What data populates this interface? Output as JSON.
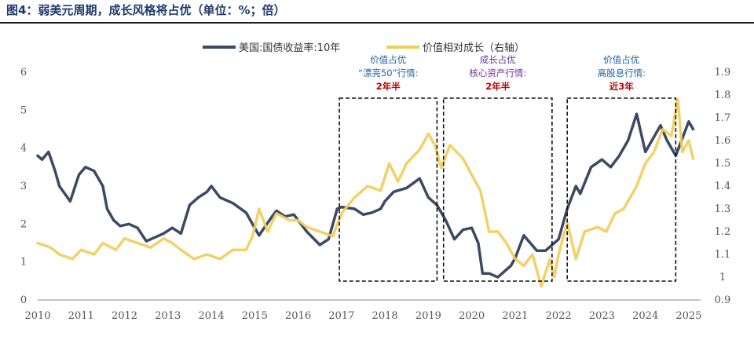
{
  "figure_title": "图4：弱美元周期，成长风格将占优（单位：%；倍）",
  "colors": {
    "us10y": "#3b4a63",
    "value_growth": "#f2cd5b",
    "ann_blue": "#1b63a8",
    "ann_red": "#c00000",
    "ann_purple": "#7030a0"
  },
  "annotations": [
    {
      "lines": [
        "价值占优",
        "“漂亮50”行情:",
        "2年半"
      ],
      "colors": [
        "ann_blue",
        "ann_blue",
        "ann_red"
      ],
      "x0": 2016.95,
      "x1": 2019.2
    },
    {
      "lines": [
        "成长占优",
        "核心资产行情:",
        "2年半"
      ],
      "colors": [
        "ann_purple",
        "ann_purple",
        "ann_red"
      ],
      "x0": 2019.35,
      "x1": 2021.85
    },
    {
      "lines": [
        "价值占优",
        "高股息行情:",
        "近3年"
      ],
      "colors": [
        "ann_blue",
        "ann_blue",
        "ann_red"
      ],
      "x0": 2022.2,
      "x1": 2024.7
    }
  ],
  "chart_data": {
    "type": "line",
    "title": "",
    "x_ticks": [
      2010,
      2011,
      2012,
      2013,
      2014,
      2015,
      2016,
      2017,
      2018,
      2019,
      2020,
      2021,
      2022,
      2023,
      2024,
      2025
    ],
    "xlim": [
      2010,
      2025.2
    ],
    "ylim_left": [
      0,
      6
    ],
    "y_ticks_left": [
      "0",
      "1",
      "2",
      "3",
      "4",
      "5",
      "6"
    ],
    "ylim_right": [
      0.9,
      1.9
    ],
    "y_ticks_right": [
      "0.9",
      "1",
      "1.1",
      "1.2",
      "1.3",
      "1.4",
      "1.5",
      "1.6",
      "1.7",
      "1.8",
      "1.9"
    ],
    "legend_position": "top-center",
    "series": [
      {
        "name": "美国:国债收益率:10年",
        "axis": "left",
        "x": [
          2010.0,
          2010.1,
          2010.25,
          2010.4,
          2010.5,
          2010.75,
          2010.95,
          2011.1,
          2011.3,
          2011.5,
          2011.6,
          2011.75,
          2011.9,
          2012.1,
          2012.3,
          2012.5,
          2012.7,
          2012.9,
          2013.1,
          2013.3,
          2013.5,
          2013.7,
          2013.9,
          2014.0,
          2014.2,
          2014.5,
          2014.8,
          2015.0,
          2015.1,
          2015.4,
          2015.5,
          2015.7,
          2015.9,
          2016.2,
          2016.5,
          2016.7,
          2016.9,
          2017.0,
          2017.3,
          2017.5,
          2017.7,
          2017.9,
          2018.0,
          2018.2,
          2018.5,
          2018.8,
          2019.0,
          2019.2,
          2019.4,
          2019.6,
          2019.8,
          2020.0,
          2020.15,
          2020.25,
          2020.4,
          2020.6,
          2020.9,
          2021.0,
          2021.2,
          2021.5,
          2021.7,
          2021.9,
          2022.0,
          2022.2,
          2022.4,
          2022.5,
          2022.75,
          2023.0,
          2023.2,
          2023.4,
          2023.6,
          2023.8,
          2024.0,
          2024.2,
          2024.35,
          2024.5,
          2024.7,
          2024.9,
          2025.0,
          2025.1
        ],
        "y": [
          3.8,
          3.7,
          3.9,
          3.4,
          3.0,
          2.6,
          3.3,
          3.5,
          3.4,
          3.0,
          2.4,
          2.1,
          1.95,
          2.0,
          1.9,
          1.55,
          1.65,
          1.75,
          1.9,
          1.75,
          2.5,
          2.7,
          2.85,
          3.0,
          2.7,
          2.55,
          2.3,
          1.9,
          1.7,
          2.2,
          2.35,
          2.2,
          2.25,
          1.8,
          1.45,
          1.6,
          2.4,
          2.45,
          2.4,
          2.25,
          2.3,
          2.4,
          2.6,
          2.85,
          2.95,
          3.2,
          2.7,
          2.5,
          2.1,
          1.6,
          1.85,
          1.9,
          1.5,
          0.7,
          0.7,
          0.6,
          0.9,
          1.1,
          1.7,
          1.3,
          1.3,
          1.5,
          1.6,
          2.4,
          3.0,
          2.8,
          3.5,
          3.7,
          3.5,
          3.8,
          4.2,
          4.9,
          3.9,
          4.3,
          4.6,
          4.2,
          3.8,
          4.4,
          4.7,
          4.5
        ]
      },
      {
        "name": "价值相对成长（右轴）",
        "axis": "right",
        "x": [
          2010.0,
          2010.3,
          2010.5,
          2010.8,
          2011.0,
          2011.3,
          2011.5,
          2011.8,
          2012.0,
          2012.3,
          2012.6,
          2012.9,
          2013.1,
          2013.3,
          2013.6,
          2013.9,
          2014.2,
          2014.5,
          2014.8,
          2014.95,
          2015.1,
          2015.3,
          2015.5,
          2015.8,
          2016.0,
          2016.2,
          2016.5,
          2016.8,
          2017.0,
          2017.3,
          2017.6,
          2017.9,
          2018.1,
          2018.3,
          2018.5,
          2018.8,
          2019.0,
          2019.15,
          2019.3,
          2019.5,
          2019.8,
          2020.0,
          2020.2,
          2020.4,
          2020.6,
          2020.8,
          2021.0,
          2021.2,
          2021.4,
          2021.6,
          2021.8,
          2021.9,
          2022.0,
          2022.2,
          2022.4,
          2022.6,
          2022.9,
          2023.1,
          2023.3,
          2023.5,
          2023.8,
          2024.0,
          2024.2,
          2024.4,
          2024.6,
          2024.75,
          2024.85,
          2025.0,
          2025.1
        ],
        "y": [
          1.15,
          1.13,
          1.1,
          1.08,
          1.12,
          1.1,
          1.15,
          1.12,
          1.17,
          1.15,
          1.13,
          1.17,
          1.15,
          1.12,
          1.08,
          1.1,
          1.08,
          1.12,
          1.12,
          1.18,
          1.3,
          1.2,
          1.28,
          1.25,
          1.25,
          1.22,
          1.2,
          1.18,
          1.28,
          1.35,
          1.4,
          1.38,
          1.5,
          1.42,
          1.5,
          1.56,
          1.63,
          1.58,
          1.48,
          1.58,
          1.52,
          1.45,
          1.38,
          1.2,
          1.2,
          1.15,
          1.08,
          1.05,
          1.1,
          0.96,
          1.08,
          1.0,
          1.1,
          1.24,
          1.08,
          1.2,
          1.22,
          1.2,
          1.28,
          1.3,
          1.4,
          1.5,
          1.55,
          1.65,
          1.62,
          1.78,
          1.55,
          1.6,
          1.52
        ]
      }
    ]
  }
}
